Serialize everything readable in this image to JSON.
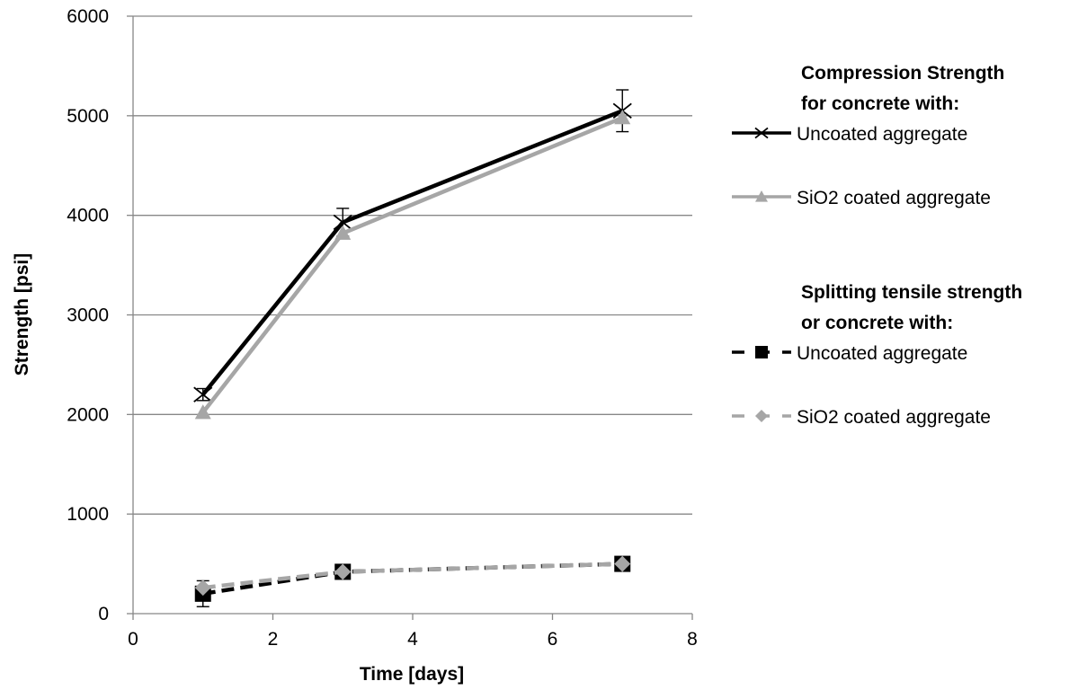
{
  "chart_data": {
    "type": "line",
    "xlabel": "Time [days]",
    "ylabel": "Strength [psi]",
    "xlim": [
      0,
      8
    ],
    "ylim": [
      0,
      6000
    ],
    "x_ticks": [
      0,
      2,
      4,
      6,
      8
    ],
    "y_ticks": [
      0,
      1000,
      2000,
      3000,
      4000,
      5000,
      6000
    ],
    "grid": "horizontal",
    "legend_position": "right",
    "legend_groups": [
      {
        "heading_lines": [
          "Compression Strength",
          "for concrete with:"
        ],
        "series_indices": [
          0,
          1
        ]
      },
      {
        "heading_lines": [
          "Splitting tensile strength",
          "or concrete with:"
        ],
        "series_indices": [
          2,
          3
        ]
      }
    ],
    "series": [
      {
        "name": "Uncoated aggregate",
        "group": "Compression Strength",
        "color": "#000000",
        "dash": "solid",
        "marker": "x",
        "x": [
          1,
          3,
          7
        ],
        "y": [
          2200,
          3930,
          5050
        ],
        "error": [
          60,
          140,
          210
        ]
      },
      {
        "name": "SiO2 coated aggregate",
        "group": "Compression Strength",
        "color": "#a6a6a6",
        "dash": "solid",
        "marker": "triangle",
        "x": [
          1,
          3,
          7
        ],
        "y": [
          2020,
          3820,
          4980
        ],
        "error": [
          0,
          0,
          0
        ]
      },
      {
        "name": "Uncoated aggregate",
        "group": "Splitting tensile strength",
        "color": "#000000",
        "dash": "dashed",
        "marker": "square",
        "x": [
          1,
          3,
          7
        ],
        "y": [
          200,
          420,
          500
        ],
        "error": [
          130,
          0,
          0
        ]
      },
      {
        "name": "SiO2 coated aggregate",
        "group": "Splitting tensile strength",
        "color": "#a6a6a6",
        "dash": "dashed",
        "marker": "diamond",
        "x": [
          1,
          3,
          7
        ],
        "y": [
          260,
          420,
          500
        ],
        "error": [
          0,
          0,
          0
        ]
      }
    ]
  }
}
